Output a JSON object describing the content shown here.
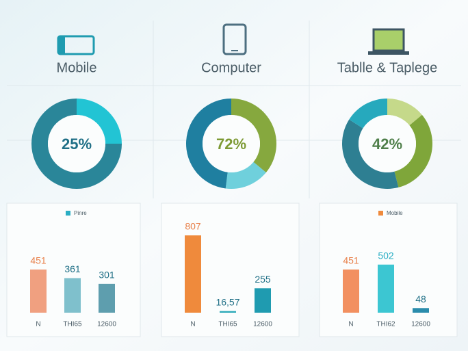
{
  "columns": [
    {
      "label": "Mobile"
    },
    {
      "label": "Computer"
    },
    {
      "label": "Tablle & Taplege"
    }
  ],
  "chart_data": [
    {
      "type": "pie",
      "donut": true,
      "center_label": "25%",
      "values": [
        25,
        75
      ],
      "colors": [
        "#22c4d4",
        "#2a8699"
      ],
      "label_color": "#1f6f86"
    },
    {
      "type": "pie",
      "donut": true,
      "center_label": "72%",
      "values": [
        36,
        16,
        48
      ],
      "colors": [
        "#86a83e",
        "#6fd0dc",
        "#1f7fa0"
      ],
      "label_color": "#7d9a34"
    },
    {
      "type": "pie",
      "donut": true,
      "center_label": "42%",
      "values": [
        14,
        32,
        38,
        16
      ],
      "colors": [
        "#c5d98a",
        "#7fa63a",
        "#2e7f92",
        "#26a9bd"
      ],
      "label_color": "#4f7f4a"
    },
    {
      "type": "bar",
      "legend": "Pinre",
      "legend_color": "#2aaec4",
      "categories": [
        "N",
        "THI65",
        "12600"
      ],
      "values": [
        451,
        361,
        301
      ],
      "value_labels": [
        "451",
        "361",
        "301"
      ],
      "colors": [
        "#f0a080",
        "#7fc0cc",
        "#5e9eae"
      ],
      "label_colors": [
        "#e8804a",
        "#1f6f86",
        "#1f6f86"
      ],
      "ylim": [
        0,
        1000
      ]
    },
    {
      "type": "bar",
      "categories": [
        "N",
        "THI65",
        "12600"
      ],
      "values": [
        807,
        16.57,
        255
      ],
      "value_labels": [
        "807",
        "16,57",
        "255"
      ],
      "colors": [
        "#ef8a3c",
        "#2aa9b8",
        "#1f9bb0"
      ],
      "label_colors": [
        "#e8804a",
        "#1f6f86",
        "#1f6f86"
      ],
      "ylim": [
        0,
        1000
      ]
    },
    {
      "type": "bar",
      "legend": "Mobile",
      "legend_color": "#ef8a3c",
      "categories": [
        "N",
        "THI62",
        "12600"
      ],
      "values": [
        451,
        502,
        48
      ],
      "value_labels": [
        "451",
        "502",
        "48"
      ],
      "colors": [
        "#f29060",
        "#3cc6d2",
        "#2a8cac"
      ],
      "label_colors": [
        "#e8804a",
        "#2aaec4",
        "#1f6f86"
      ],
      "ylim": [
        0,
        1000
      ]
    }
  ]
}
